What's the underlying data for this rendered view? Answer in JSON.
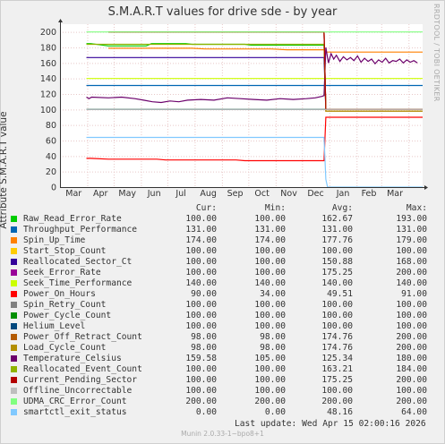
{
  "title": "S.M.A.R.T values for drive sde - by year",
  "watermark": "RRDTOOL / TOBI OETIKER",
  "footer": "Munin 2.0.33-1~bpo8+1",
  "last_update": "Last update:  Wed Apr 15 02:00:16 2026",
  "legend_headers": {
    "cur": "Cur:",
    "min": "Min:",
    "avg": "Avg:",
    "max": "Max:"
  },
  "legend": [
    {
      "name": "Raw_Read_Error_Rate",
      "color": "#00cc00",
      "cur": "100.00",
      "min": "100.00",
      "avg": "162.67",
      "max": "193.00"
    },
    {
      "name": "Throughput_Performance",
      "color": "#0066b3",
      "cur": "131.00",
      "min": "131.00",
      "avg": "131.00",
      "max": "131.00"
    },
    {
      "name": "Spin_Up_Time",
      "color": "#ff8000",
      "cur": "174.00",
      "min": "174.00",
      "avg": "177.76",
      "max": "179.00"
    },
    {
      "name": "Start_Stop_Count",
      "color": "#ffcc00",
      "cur": "100.00",
      "min": "100.00",
      "avg": "100.00",
      "max": "100.00"
    },
    {
      "name": "Reallocated_Sector_Ct",
      "color": "#330099",
      "cur": "100.00",
      "min": "100.00",
      "avg": "150.88",
      "max": "168.00"
    },
    {
      "name": "Seek_Error_Rate",
      "color": "#990099",
      "cur": "100.00",
      "min": "100.00",
      "avg": "175.25",
      "max": "200.00"
    },
    {
      "name": "Seek_Time_Performance",
      "color": "#ccff00",
      "cur": "140.00",
      "min": "140.00",
      "avg": "140.00",
      "max": "140.00"
    },
    {
      "name": "Power_On_Hours",
      "color": "#ff0000",
      "cur": "90.00",
      "min": "34.00",
      "avg": "49.51",
      "max": "91.00"
    },
    {
      "name": "Spin_Retry_Count",
      "color": "#808080",
      "cur": "100.00",
      "min": "100.00",
      "avg": "100.00",
      "max": "100.00"
    },
    {
      "name": "Power_Cycle_Count",
      "color": "#008f00",
      "cur": "100.00",
      "min": "100.00",
      "avg": "100.00",
      "max": "100.00"
    },
    {
      "name": "Helium_Level",
      "color": "#00487d",
      "cur": "100.00",
      "min": "100.00",
      "avg": "100.00",
      "max": "100.00"
    },
    {
      "name": "Power_Off_Retract_Count",
      "color": "#b35a00",
      "cur": "98.00",
      "min": "98.00",
      "avg": "174.76",
      "max": "200.00"
    },
    {
      "name": "Load_Cycle_Count",
      "color": "#b38f00",
      "cur": "98.00",
      "min": "98.00",
      "avg": "174.76",
      "max": "200.00"
    },
    {
      "name": "Temperature_Celsius",
      "color": "#6b006b",
      "cur": "159.58",
      "min": "105.00",
      "avg": "125.34",
      "max": "180.00"
    },
    {
      "name": "Reallocated_Event_Count",
      "color": "#8fb300",
      "cur": "100.00",
      "min": "100.00",
      "avg": "163.21",
      "max": "184.00"
    },
    {
      "name": "Current_Pending_Sector",
      "color": "#b30000",
      "cur": "100.00",
      "min": "100.00",
      "avg": "175.25",
      "max": "200.00"
    },
    {
      "name": "Offline_Uncorrectable",
      "color": "#bebebe",
      "cur": "100.00",
      "min": "100.00",
      "avg": "100.00",
      "max": "100.00"
    },
    {
      "name": "UDMA_CRC_Error_Count",
      "color": "#80ff80",
      "cur": "200.00",
      "min": "200.00",
      "avg": "200.00",
      "max": "200.00"
    },
    {
      "name": "smartctl_exit_status",
      "color": "#80c9ff",
      "cur": "0.00",
      "min": "0.00",
      "avg": "48.16",
      "max": "64.00"
    }
  ],
  "chart_data": {
    "type": "line",
    "title": "S.M.A.R.T values for drive sde - by year",
    "ylabel": "Attribute S.M.A.R.T value",
    "xlabel": "",
    "x_ticks": [
      "Mar",
      "Apr",
      "May",
      "Jun",
      "Jul",
      "Aug",
      "Sep",
      "Oct",
      "Nov",
      "Dec",
      "Jan",
      "Feb",
      "Mar"
    ],
    "y_ticks": [
      0,
      20,
      40,
      60,
      80,
      100,
      120,
      140,
      160,
      180,
      200
    ],
    "ylim": [
      0,
      210
    ],
    "grid": true,
    "x_range_days": [
      0,
      412
    ],
    "series": [
      {
        "name": "Raw_Read_Error_Rate",
        "color": "#00cc00",
        "points": [
          [
            30,
            185
          ],
          [
            35,
            185
          ],
          [
            55,
            182
          ],
          [
            98,
            182
          ],
          [
            104,
            185
          ],
          [
            143,
            185
          ],
          [
            150,
            184
          ],
          [
            210,
            184
          ],
          [
            217,
            183
          ],
          [
            300,
            183
          ],
          [
            302,
            100
          ],
          [
            412,
            100
          ]
        ]
      },
      {
        "name": "Throughput_Performance",
        "color": "#0066b3",
        "points": [
          [
            30,
            131
          ],
          [
            412,
            131
          ]
        ]
      },
      {
        "name": "Spin_Up_Time",
        "color": "#ff8000",
        "points": [
          [
            55,
            179
          ],
          [
            150,
            179
          ],
          [
            165,
            178
          ],
          [
            240,
            178
          ],
          [
            258,
            177
          ],
          [
            300,
            177
          ],
          [
            302,
            174
          ],
          [
            412,
            174
          ]
        ]
      },
      {
        "name": "Start_Stop_Count",
        "color": "#ffcc00",
        "points": [
          [
            30,
            100
          ],
          [
            412,
            100
          ]
        ]
      },
      {
        "name": "Reallocated_Sector_Ct",
        "color": "#330099",
        "points": [
          [
            30,
            167
          ],
          [
            300,
            167
          ],
          [
            302,
            100
          ],
          [
            412,
            100
          ]
        ]
      },
      {
        "name": "Seek_Error_Rate",
        "color": "#990099",
        "points": [
          [
            55,
            200
          ],
          [
            300,
            200
          ],
          [
            302,
            100
          ],
          [
            412,
            100
          ]
        ]
      },
      {
        "name": "Seek_Time_Performance",
        "color": "#ccff00",
        "points": [
          [
            30,
            140
          ],
          [
            412,
            140
          ]
        ]
      },
      {
        "name": "Power_On_Hours",
        "color": "#ff0000",
        "points": [
          [
            30,
            37
          ],
          [
            35,
            37
          ],
          [
            55,
            36
          ],
          [
            110,
            36
          ],
          [
            120,
            35
          ],
          [
            200,
            35
          ],
          [
            210,
            34
          ],
          [
            300,
            34
          ],
          [
            302,
            90
          ],
          [
            412,
            90
          ]
        ]
      },
      {
        "name": "Spin_Retry_Count",
        "color": "#808080",
        "points": [
          [
            30,
            100
          ],
          [
            412,
            100
          ]
        ]
      },
      {
        "name": "Power_Cycle_Count",
        "color": "#008f00",
        "points": [
          [
            30,
            100
          ],
          [
            412,
            100
          ]
        ]
      },
      {
        "name": "Helium_Level",
        "color": "#00487d",
        "points": [
          [
            30,
            100
          ],
          [
            412,
            100
          ]
        ]
      },
      {
        "name": "Power_Off_Retract_Count",
        "color": "#b35a00",
        "points": [
          [
            55,
            200
          ],
          [
            300,
            200
          ],
          [
            302,
            98
          ],
          [
            412,
            98
          ]
        ]
      },
      {
        "name": "Load_Cycle_Count",
        "color": "#b38f00",
        "points": [
          [
            55,
            200
          ],
          [
            300,
            200
          ],
          [
            302,
            98
          ],
          [
            412,
            98
          ]
        ]
      },
      {
        "name": "Temperature_Celsius",
        "color": "#6b006b",
        "points": [
          [
            30,
            116
          ],
          [
            33,
            114
          ],
          [
            36,
            116
          ],
          [
            55,
            115
          ],
          [
            70,
            116
          ],
          [
            85,
            114
          ],
          [
            95,
            112
          ],
          [
            105,
            110
          ],
          [
            115,
            109
          ],
          [
            125,
            111
          ],
          [
            135,
            110
          ],
          [
            145,
            112
          ],
          [
            160,
            113
          ],
          [
            175,
            112
          ],
          [
            190,
            115
          ],
          [
            205,
            114
          ],
          [
            220,
            113
          ],
          [
            235,
            112
          ],
          [
            250,
            114
          ],
          [
            265,
            113
          ],
          [
            280,
            114
          ],
          [
            290,
            115
          ],
          [
            298,
            117
          ],
          [
            300,
            118
          ],
          [
            302,
            180
          ],
          [
            305,
            160
          ],
          [
            308,
            172
          ],
          [
            311,
            165
          ],
          [
            314,
            170
          ],
          [
            318,
            162
          ],
          [
            322,
            168
          ],
          [
            326,
            164
          ],
          [
            330,
            167
          ],
          [
            334,
            163
          ],
          [
            338,
            169
          ],
          [
            342,
            161
          ],
          [
            346,
            166
          ],
          [
            350,
            162
          ],
          [
            354,
            165
          ],
          [
            358,
            159
          ],
          [
            362,
            164
          ],
          [
            366,
            161
          ],
          [
            370,
            166
          ],
          [
            374,
            160
          ],
          [
            378,
            163
          ],
          [
            382,
            162
          ],
          [
            386,
            165
          ],
          [
            390,
            160
          ],
          [
            394,
            164
          ],
          [
            398,
            161
          ],
          [
            402,
            163
          ],
          [
            406,
            160
          ]
        ]
      },
      {
        "name": "Reallocated_Event_Count",
        "color": "#8fb300",
        "points": [
          [
            30,
            184
          ],
          [
            300,
            184
          ],
          [
            302,
            100
          ],
          [
            412,
            100
          ]
        ]
      },
      {
        "name": "Current_Pending_Sector",
        "color": "#b30000",
        "points": [
          [
            55,
            200
          ],
          [
            300,
            200
          ],
          [
            302,
            100
          ],
          [
            412,
            100
          ]
        ]
      },
      {
        "name": "Offline_Uncorrectable",
        "color": "#bebebe",
        "points": [
          [
            30,
            100
          ],
          [
            412,
            100
          ]
        ]
      },
      {
        "name": "UDMA_CRC_Error_Count",
        "color": "#80ff80",
        "points": [
          [
            30,
            200
          ],
          [
            412,
            200
          ]
        ]
      },
      {
        "name": "smartctl_exit_status",
        "color": "#80c9ff",
        "points": [
          [
            30,
            64
          ],
          [
            300,
            64
          ],
          [
            302,
            10
          ],
          [
            304,
            0
          ],
          [
            412,
            0
          ]
        ]
      }
    ]
  }
}
